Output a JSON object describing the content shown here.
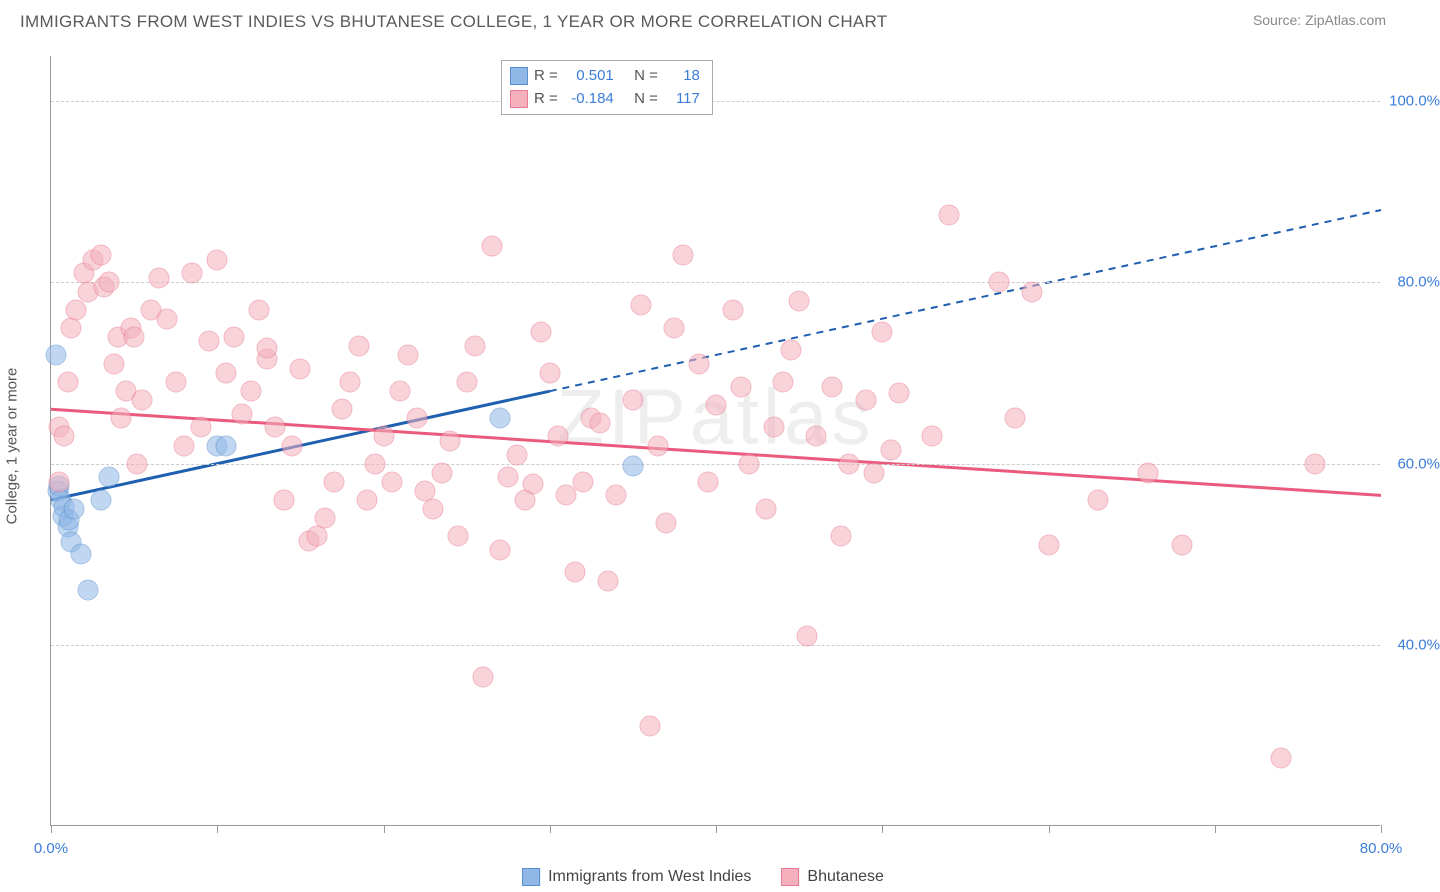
{
  "title": "IMMIGRANTS FROM WEST INDIES VS BHUTANESE COLLEGE, 1 YEAR OR MORE CORRELATION CHART",
  "source": "Source: ZipAtlas.com",
  "watermark": "ZIPatlas",
  "y_axis_label": "College, 1 year or more",
  "chart": {
    "type": "scatter",
    "xlim": [
      0,
      80
    ],
    "ylim": [
      20,
      105
    ],
    "x_ticks": [
      0,
      10,
      20,
      30,
      40,
      50,
      60,
      70,
      80
    ],
    "x_tick_labels": {
      "0": "0.0%",
      "80": "80.0%"
    },
    "y_ticks": [
      40,
      60,
      80,
      100
    ],
    "y_tick_labels": {
      "40": "40.0%",
      "60": "60.0%",
      "80": "80.0%",
      "100": "100.0%"
    },
    "background_color": "#ffffff",
    "grid_color": "#cccccc",
    "axis_color": "#999999",
    "tick_label_color": "#3b7dd8",
    "marker_radius": 10.5,
    "marker_opacity": 0.55,
    "series": [
      {
        "name": "Immigrants from West Indies",
        "fill_color": "#8fb8e6",
        "stroke_color": "#5a8fd0",
        "line_color": "#1f5fb0",
        "R": "0.501",
        "N": "18",
        "trend": {
          "x1": 0,
          "y1": 56,
          "x2": 30,
          "y2": 68,
          "dash_x1": 30,
          "dash_y1": 68,
          "dash_x2": 80,
          "dash_y2": 88
        },
        "points": [
          [
            0.3,
            72
          ],
          [
            0.4,
            57
          ],
          [
            0.5,
            57.5
          ],
          [
            0.6,
            56
          ],
          [
            0.7,
            54.2
          ],
          [
            0.8,
            55.2
          ],
          [
            1.0,
            53
          ],
          [
            1.1,
            53.8
          ],
          [
            1.2,
            51.3
          ],
          [
            1.4,
            55
          ],
          [
            1.8,
            50
          ],
          [
            2.2,
            46.1
          ],
          [
            3.0,
            56
          ],
          [
            3.5,
            58.5
          ],
          [
            10,
            62
          ],
          [
            10.5,
            62
          ],
          [
            27,
            65
          ],
          [
            35,
            59.7
          ]
        ]
      },
      {
        "name": "Bhutanese",
        "fill_color": "#f4b0bd",
        "stroke_color": "#e87b92",
        "line_color": "#e95a7c",
        "R": "-0.184",
        "N": "117",
        "trend": {
          "x1": 0,
          "y1": 66,
          "x2": 80,
          "y2": 56.5
        },
        "points": [
          [
            0.5,
            64
          ],
          [
            0.8,
            63
          ],
          [
            0.5,
            58
          ],
          [
            1,
            69
          ],
          [
            1.2,
            75
          ],
          [
            1.5,
            77
          ],
          [
            2,
            81
          ],
          [
            2.2,
            79
          ],
          [
            2.5,
            82.5
          ],
          [
            3,
            83
          ],
          [
            3.2,
            79.5
          ],
          [
            3.5,
            80
          ],
          [
            3.8,
            71
          ],
          [
            4,
            74
          ],
          [
            4.2,
            65
          ],
          [
            4.5,
            68
          ],
          [
            4.8,
            75
          ],
          [
            5,
            74
          ],
          [
            5.2,
            60
          ],
          [
            5.5,
            67
          ],
          [
            6,
            77
          ],
          [
            6.5,
            80.5
          ],
          [
            7,
            76
          ],
          [
            7.5,
            69
          ],
          [
            8,
            62
          ],
          [
            8.5,
            81
          ],
          [
            9,
            64
          ],
          [
            9.5,
            73.5
          ],
          [
            10,
            82.5
          ],
          [
            10.5,
            70
          ],
          [
            11,
            74
          ],
          [
            11.5,
            65.5
          ],
          [
            12,
            68
          ],
          [
            12.5,
            77
          ],
          [
            13,
            71.5
          ],
          [
            13,
            72.8
          ],
          [
            13.5,
            64
          ],
          [
            14,
            56
          ],
          [
            14.5,
            62
          ],
          [
            15,
            70.5
          ],
          [
            15.5,
            51.5
          ],
          [
            16,
            52
          ],
          [
            16.5,
            54
          ],
          [
            17,
            58
          ],
          [
            17.5,
            66
          ],
          [
            18,
            69
          ],
          [
            18.5,
            73
          ],
          [
            19,
            56
          ],
          [
            19.5,
            60
          ],
          [
            20,
            63
          ],
          [
            20.5,
            58
          ],
          [
            21,
            68
          ],
          [
            21.5,
            72
          ],
          [
            22,
            65
          ],
          [
            22.5,
            57
          ],
          [
            23,
            55
          ],
          [
            23.5,
            59
          ],
          [
            24,
            62.5
          ],
          [
            24.5,
            52
          ],
          [
            25,
            69
          ],
          [
            25.5,
            73
          ],
          [
            26,
            36.5
          ],
          [
            26.5,
            84
          ],
          [
            27,
            50.5
          ],
          [
            27.5,
            58.5
          ],
          [
            28,
            61
          ],
          [
            28.5,
            56
          ],
          [
            29,
            57.8
          ],
          [
            29.5,
            74.5
          ],
          [
            30,
            70
          ],
          [
            30.5,
            63
          ],
          [
            31,
            56.5
          ],
          [
            31.5,
            48
          ],
          [
            32,
            58
          ],
          [
            32.5,
            65
          ],
          [
            33,
            64.5
          ],
          [
            33.5,
            47
          ],
          [
            34,
            56.5
          ],
          [
            35,
            67
          ],
          [
            35.5,
            77.5
          ],
          [
            36,
            31
          ],
          [
            36.5,
            62
          ],
          [
            37,
            53.5
          ],
          [
            37.5,
            75
          ],
          [
            38,
            83
          ],
          [
            39,
            71
          ],
          [
            39.5,
            58
          ],
          [
            40,
            66.5
          ],
          [
            41,
            77
          ],
          [
            41.5,
            68.5
          ],
          [
            42,
            60
          ],
          [
            43,
            55
          ],
          [
            43.5,
            64
          ],
          [
            44,
            69
          ],
          [
            44.5,
            72.5
          ],
          [
            45,
            78
          ],
          [
            45.5,
            41
          ],
          [
            46,
            63
          ],
          [
            47,
            68.5
          ],
          [
            47.5,
            52
          ],
          [
            48,
            60
          ],
          [
            49,
            67
          ],
          [
            49.5,
            59
          ],
          [
            50,
            74.5
          ],
          [
            50.5,
            61.5
          ],
          [
            51,
            67.8
          ],
          [
            53,
            63
          ],
          [
            54,
            87.5
          ],
          [
            57,
            80
          ],
          [
            58,
            65
          ],
          [
            59,
            79
          ],
          [
            60,
            51
          ],
          [
            63,
            56
          ],
          [
            66,
            59
          ],
          [
            68,
            51
          ],
          [
            74,
            27.5
          ],
          [
            76,
            60
          ]
        ]
      }
    ]
  },
  "stats_legend_labels": {
    "r": "R =",
    "n": "N ="
  },
  "bottom_legend": [
    {
      "label": "Immigrants from West Indies",
      "fill": "#8fb8e6",
      "stroke": "#5a8fd0"
    },
    {
      "label": "Bhutanese",
      "fill": "#f4b0bd",
      "stroke": "#e87b92"
    }
  ]
}
